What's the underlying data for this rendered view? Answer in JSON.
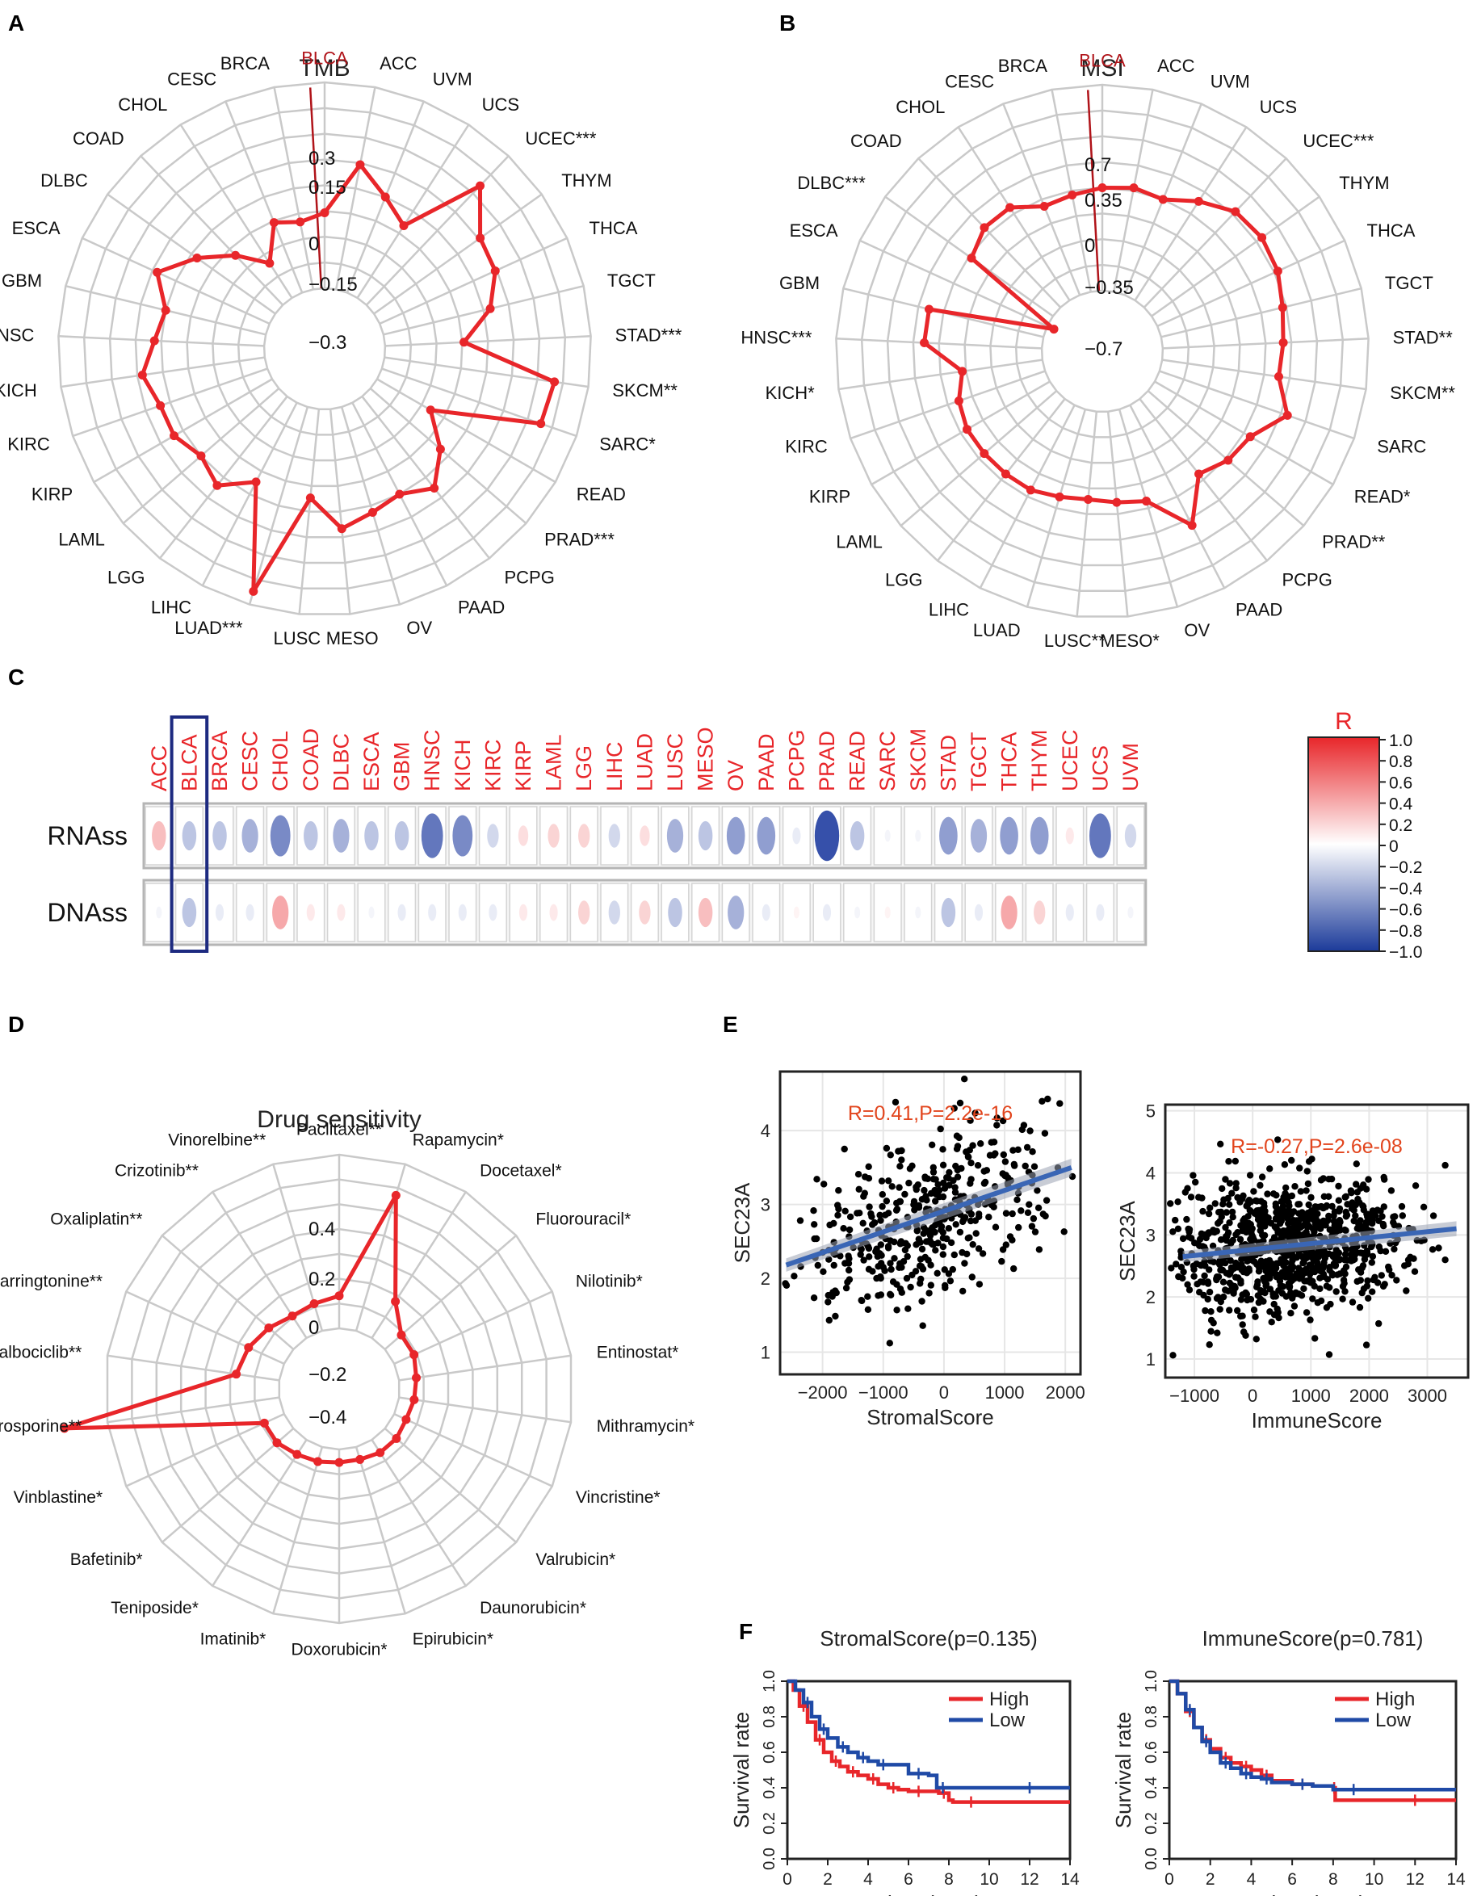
{
  "chart_data": [
    {
      "panel": "A",
      "type": "radar",
      "title": "TMB",
      "ticks": [
        "0.3",
        "0.15",
        "0",
        "−0.15",
        "−0.3"
      ],
      "rlim": [
        -0.3,
        0.3
      ],
      "highlight": "BLCA",
      "categories": [
        "BLCA",
        "ACC",
        "UVM",
        "UCS",
        "UCEC***",
        "THYM",
        "THCA",
        "TGCT",
        "STAD***",
        "SKCM**",
        "SARC*",
        "READ",
        "PRAD***",
        "PCPG",
        "PAAD",
        "OV",
        "MESO",
        "LUSC",
        "LUAD***",
        "LIHC",
        "LGG",
        "LAML",
        "KIRP",
        "KIRC",
        "KICH",
        "HNSC",
        "GBM",
        "ESCA",
        "DLBC",
        "COAD",
        "CHOL",
        "CESC",
        "BRCA"
      ],
      "values": [
        -0.08,
        0.07,
        0.0,
        -0.05,
        0.18,
        0.08,
        0.07,
        0.02,
        -0.07,
        0.2,
        0.19,
        -0.12,
        -0.03,
        0.04,
        0.0,
        0.02,
        0.05,
        -0.04,
        0.26,
        -0.04,
        0.03,
        0.0,
        0.03,
        0.03,
        0.06,
        0.02,
        0.0,
        0.06,
        -0.02,
        -0.1,
        -0.18,
        -0.08,
        -0.1
      ]
    },
    {
      "panel": "B",
      "type": "radar",
      "title": "MSI",
      "ticks": [
        "0.7",
        "0.35",
        "0",
        "−0.35",
        "−0.7"
      ],
      "rlim": [
        -0.7,
        0.7
      ],
      "highlight": "BLCA",
      "categories": [
        "BLCA",
        "ACC",
        "UVM",
        "UCS",
        "UCEC***",
        "THYM",
        "THCA",
        "TGCT",
        "STAD**",
        "SKCM**",
        "SARC",
        "READ*",
        "PRAD**",
        "PCPG",
        "PAAD",
        "OV",
        "MESO*",
        "LUSC**",
        "LUAD",
        "LIHC",
        "LGG",
        "LAML",
        "KIRP",
        "KIRC",
        "KICH*",
        "HNSC***",
        "GBM",
        "ESCA",
        "DLBC***",
        "COAD",
        "CHOL",
        "CESC",
        "BRCA"
      ],
      "values": [
        0.0,
        0.02,
        0.0,
        0.1,
        0.2,
        0.22,
        0.2,
        0.15,
        0.12,
        0.1,
        0.22,
        0.05,
        0.02,
        -0.05,
        0.22,
        -0.05,
        -0.08,
        -0.1,
        -0.08,
        -0.05,
        -0.05,
        -0.05,
        -0.05,
        -0.08,
        -0.15,
        0.1,
        0.1,
        -0.75,
        -0.02,
        0.05,
        0.05,
        -0.05,
        -0.03
      ]
    },
    {
      "panel": "C",
      "type": "heatmap",
      "columns": [
        "ACC",
        "BLCA",
        "BRCA",
        "CESC",
        "CHOL",
        "COAD",
        "DLBC",
        "ESCA",
        "GBM",
        "HNSC",
        "KICH",
        "KIRC",
        "KIRP",
        "LAML",
        "LGG",
        "LIHC",
        "LUAD",
        "LUSC",
        "MESO",
        "OV",
        "PAAD",
        "PCPG",
        "PRAD",
        "READ",
        "SARC",
        "SKCM",
        "STAD",
        "TGCT",
        "THCA",
        "THYM",
        "UCEC",
        "UCS",
        "UVM"
      ],
      "rows": [
        "RNAss",
        "DNAss"
      ],
      "values": [
        [
          0.3,
          -0.3,
          -0.3,
          -0.4,
          -0.6,
          -0.3,
          -0.4,
          -0.3,
          -0.3,
          -0.7,
          -0.6,
          -0.2,
          0.15,
          0.2,
          0.2,
          -0.2,
          0.15,
          -0.4,
          -0.3,
          -0.5,
          -0.5,
          -0.1,
          -0.9,
          -0.3,
          -0.05,
          -0.05,
          -0.5,
          -0.4,
          -0.5,
          -0.5,
          0.1,
          -0.7,
          -0.2
        ],
        [
          -0.05,
          -0.3,
          -0.1,
          -0.1,
          0.4,
          0.1,
          0.1,
          -0.05,
          -0.1,
          -0.1,
          -0.1,
          -0.1,
          0.1,
          0.1,
          0.2,
          -0.2,
          0.2,
          -0.3,
          0.3,
          -0.4,
          -0.1,
          0.05,
          -0.1,
          -0.05,
          0.05,
          -0.05,
          -0.3,
          -0.1,
          0.4,
          0.2,
          -0.1,
          -0.1,
          -0.05
        ]
      ],
      "highlight": "BLCA",
      "legend_title": "R",
      "legend_ticks": [
        "1.0",
        "0.8",
        "0.6",
        "0.4",
        "0.2",
        "0",
        "−0.2",
        "−0.4",
        "−0.6",
        "−0.8",
        "−1.0"
      ]
    },
    {
      "panel": "D",
      "type": "radar",
      "title": "Drug sensitivity",
      "ticks": [
        "0.4",
        "0.2",
        "0",
        "−0.2",
        "−0.4"
      ],
      "rlim": [
        -0.4,
        0.4
      ],
      "categories": [
        "Paclitaxel**",
        "Rapamycin*",
        "Docetaxel*",
        "Fluorouracil*",
        "Nilotinib*",
        "Entinostat*",
        "Mithramycin*",
        "Vincristine*",
        "Valrubicin*",
        "Daunorubicin*",
        "Epirubicin*",
        "Doxorubicin*",
        "Imatinib*",
        "Teniposide*",
        "Bafetinib*",
        "Vinblastine*",
        "Staurosporine**",
        "Palbociclib**",
        "Homoharringtonine**",
        "Oxaliplatin**",
        "Crizotinib**",
        "Vinorelbine**"
      ],
      "values": [
        -0.25,
        0.25,
        -0.2,
        -0.3,
        -0.3,
        -0.32,
        -0.33,
        -0.34,
        -0.33,
        -0.33,
        -0.34,
        -0.34,
        -0.33,
        -0.32,
        -0.3,
        -0.3,
        0.6,
        -0.2,
        -0.22,
        -0.25,
        -0.28,
        -0.27
      ]
    },
    {
      "panel": "E1",
      "type": "scatter",
      "annotation": "R=0.41,P=2.2e-16",
      "xlabel": "StromalScore",
      "ylabel": "SEC23A",
      "xticks": [
        "−2000",
        "−1000",
        "0",
        "1000",
        "2000"
      ],
      "yticks": [
        "1",
        "2",
        "3",
        "4"
      ],
      "xlim": [
        -2700,
        2250
      ],
      "ylim": [
        0.7,
        4.8
      ],
      "fit": {
        "x0": -2600,
        "y0": 2.18,
        "x1": 2100,
        "y1": 3.5
      }
    },
    {
      "panel": "E2",
      "type": "scatter",
      "annotation": "R=-0.27,P=2.6e-08",
      "xlabel": "ImmuneScore",
      "ylabel": "SEC23A",
      "xticks": [
        "−1000",
        "0",
        "1000",
        "2000",
        "3000"
      ],
      "yticks": [
        "1",
        "2",
        "3",
        "4",
        "5"
      ],
      "xlim": [
        -1500,
        3700
      ],
      "ylim": [
        0.7,
        5.1
      ],
      "fit": {
        "x0": -1200,
        "y0": 2.65,
        "x1": 3500,
        "y1": 3.1
      }
    },
    {
      "panel": "F1",
      "type": "line",
      "title": "StromalScore(p=0.135)",
      "xlabel": "Time (year)",
      "ylabel": "Survival rate",
      "xticks": [
        "0",
        "2",
        "4",
        "6",
        "8",
        "10",
        "12",
        "14"
      ],
      "yticks": [
        "0.0",
        "0.2",
        "0.4",
        "0.6",
        "0.8",
        "1.0"
      ],
      "xlim": [
        0,
        14
      ],
      "ylim": [
        0,
        1
      ],
      "series": [
        {
          "name": "High",
          "color": "#e8262a",
          "x": [
            0,
            0.3,
            0.6,
            1,
            1.4,
            1.8,
            2.2,
            2.6,
            3.0,
            3.5,
            4.0,
            4.5,
            5.0,
            5.5,
            6.0,
            7.0,
            7.5,
            8.0,
            8.2,
            10,
            14
          ],
          "y": [
            1,
            0.95,
            0.86,
            0.77,
            0.67,
            0.6,
            0.55,
            0.52,
            0.49,
            0.47,
            0.45,
            0.42,
            0.4,
            0.39,
            0.38,
            0.38,
            0.37,
            0.33,
            0.32,
            0.32,
            0.32
          ]
        },
        {
          "name": "Low",
          "color": "#1f4aa6",
          "x": [
            0,
            0.4,
            0.8,
            1.2,
            1.6,
            2.0,
            2.5,
            3.0,
            3.5,
            4.0,
            4.5,
            5.0,
            6.0,
            7.0,
            7.4,
            8.0,
            10,
            14
          ],
          "y": [
            1,
            0.95,
            0.88,
            0.8,
            0.73,
            0.68,
            0.63,
            0.6,
            0.57,
            0.55,
            0.53,
            0.53,
            0.48,
            0.47,
            0.4,
            0.4,
            0.4,
            0.4
          ]
        }
      ]
    },
    {
      "panel": "F2",
      "type": "line",
      "title": "ImmuneScore(p=0.781)",
      "xlabel": "Time (year)",
      "ylabel": "Survival rate",
      "xticks": [
        "0",
        "2",
        "4",
        "6",
        "8",
        "10",
        "12",
        "14"
      ],
      "yticks": [
        "0.0",
        "0.2",
        "0.4",
        "0.6",
        "0.8",
        "1.0"
      ],
      "xlim": [
        0,
        14
      ],
      "ylim": [
        0,
        1
      ],
      "series": [
        {
          "name": "High",
          "color": "#e8262a",
          "x": [
            0,
            0.4,
            0.8,
            1.2,
            1.6,
            2.0,
            2.5,
            3.0,
            3.5,
            4.0,
            4.5,
            5.0,
            6.0,
            7.0,
            8.0,
            8.1,
            10,
            14
          ],
          "y": [
            1,
            0.93,
            0.83,
            0.74,
            0.67,
            0.62,
            0.57,
            0.54,
            0.52,
            0.5,
            0.47,
            0.44,
            0.42,
            0.41,
            0.4,
            0.33,
            0.33,
            0.33
          ]
        },
        {
          "name": "Low",
          "color": "#1f4aa6",
          "x": [
            0,
            0.4,
            0.8,
            1.2,
            1.6,
            2.0,
            2.5,
            3.0,
            3.5,
            4.0,
            4.5,
            5.0,
            6.0,
            7.0,
            8.0,
            10,
            14
          ],
          "y": [
            1,
            0.93,
            0.84,
            0.74,
            0.66,
            0.6,
            0.54,
            0.51,
            0.48,
            0.46,
            0.45,
            0.43,
            0.42,
            0.41,
            0.39,
            0.39,
            0.39
          ]
        }
      ]
    }
  ],
  "panel_labels": [
    "A",
    "B",
    "C",
    "D",
    "E",
    "F"
  ],
  "colors": {
    "red": "#e8262a",
    "blue": "#2d55a8",
    "dark_red": "#b0141a",
    "grid": "#c9c9c9",
    "navy": "#1d2a80"
  }
}
